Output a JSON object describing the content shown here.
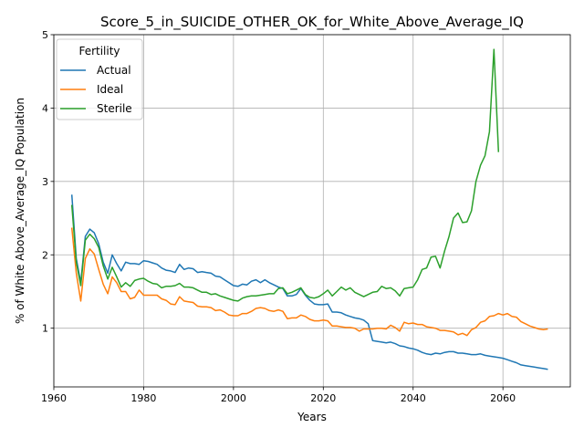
{
  "chart_data": {
    "type": "line",
    "title": "Score_5_in_SUICIDE_OTHER_OK_for_White_Above_Average_IQ",
    "xlabel": "Years",
    "ylabel": "% of White Above_Average_IQ Population",
    "xlim": [
      1960,
      2075
    ],
    "ylim": [
      0.2,
      5.0
    ],
    "xticks": [
      1960,
      1980,
      2000,
      2020,
      2040,
      2060
    ],
    "yticks": [
      1,
      2,
      3,
      4,
      5
    ],
    "grid": true,
    "legend": {
      "title": "Fertility",
      "position": "top-left"
    },
    "series": [
      {
        "name": "Actual",
        "color": "#1f77b4",
        "x": [
          1964,
          1965,
          1966,
          1967,
          1968,
          1969,
          1970,
          1971,
          1972,
          1973,
          1974,
          1975,
          1976,
          1977,
          1978,
          1979,
          1980,
          1981,
          1982,
          1983,
          1984,
          1985,
          1986,
          1987,
          1988,
          1989,
          1990,
          1991,
          1992,
          1993,
          1994,
          1995,
          1996,
          1997,
          1998,
          1999,
          2000,
          2001,
          2002,
          2003,
          2004,
          2005,
          2006,
          2007,
          2008,
          2009,
          2010,
          2011,
          2012,
          2013,
          2014,
          2015,
          2016,
          2017,
          2018,
          2019,
          2020,
          2021,
          2022,
          2023,
          2024,
          2025,
          2026,
          2027,
          2028,
          2029,
          2030,
          2031,
          2032,
          2033,
          2034,
          2035,
          2036,
          2037,
          2038,
          2039,
          2040,
          2041,
          2042,
          2043,
          2044,
          2045,
          2046,
          2047,
          2048,
          2049,
          2050,
          2051,
          2052,
          2053,
          2054,
          2055,
          2056,
          2057,
          2058,
          2059,
          2060,
          2061,
          2062,
          2063,
          2064,
          2065,
          2066,
          2067,
          2068,
          2069,
          2070
        ],
        "y": [
          2.82,
          1.95,
          1.62,
          2.25,
          2.35,
          2.3,
          2.15,
          1.9,
          1.75,
          2.0,
          1.88,
          1.78,
          1.9,
          1.88,
          1.88,
          1.87,
          1.92,
          1.91,
          1.89,
          1.87,
          1.82,
          1.79,
          1.78,
          1.76,
          1.87,
          1.8,
          1.82,
          1.81,
          1.76,
          1.77,
          1.76,
          1.75,
          1.71,
          1.7,
          1.66,
          1.62,
          1.58,
          1.57,
          1.6,
          1.59,
          1.64,
          1.66,
          1.62,
          1.66,
          1.62,
          1.59,
          1.56,
          1.54,
          1.44,
          1.44,
          1.46,
          1.54,
          1.45,
          1.38,
          1.33,
          1.32,
          1.32,
          1.33,
          1.22,
          1.22,
          1.21,
          1.18,
          1.16,
          1.14,
          1.13,
          1.11,
          1.06,
          0.83,
          0.82,
          0.81,
          0.8,
          0.81,
          0.79,
          0.76,
          0.75,
          0.73,
          0.72,
          0.7,
          0.67,
          0.65,
          0.64,
          0.66,
          0.65,
          0.67,
          0.68,
          0.68,
          0.66,
          0.66,
          0.65,
          0.64,
          0.64,
          0.65,
          0.63,
          0.62,
          0.61,
          0.6,
          0.59,
          0.57,
          0.55,
          0.53,
          0.5,
          0.49,
          0.48,
          0.47,
          0.46,
          0.45,
          0.44
        ]
      },
      {
        "name": "Ideal",
        "color": "#ff7f0e",
        "x": [
          1964,
          1965,
          1966,
          1967,
          1968,
          1969,
          1970,
          1971,
          1972,
          1973,
          1974,
          1975,
          1976,
          1977,
          1978,
          1979,
          1980,
          1981,
          1982,
          1983,
          1984,
          1985,
          1986,
          1987,
          1988,
          1989,
          1990,
          1991,
          1992,
          1993,
          1994,
          1995,
          1996,
          1997,
          1998,
          1999,
          2000,
          2001,
          2002,
          2003,
          2004,
          2005,
          2006,
          2007,
          2008,
          2009,
          2010,
          2011,
          2012,
          2013,
          2014,
          2015,
          2016,
          2017,
          2018,
          2019,
          2020,
          2021,
          2022,
          2023,
          2024,
          2025,
          2026,
          2027,
          2028,
          2029,
          2030,
          2031,
          2032,
          2033,
          2034,
          2035,
          2036,
          2037,
          2038,
          2039,
          2040,
          2041,
          2042,
          2043,
          2044,
          2045,
          2046,
          2047,
          2048,
          2049,
          2050,
          2051,
          2052,
          2053,
          2054,
          2055,
          2056,
          2057,
          2058,
          2059,
          2060,
          2061,
          2062,
          2063,
          2064,
          2065,
          2066,
          2067,
          2068,
          2069,
          2070
        ],
        "y": [
          2.37,
          1.75,
          1.37,
          1.95,
          2.08,
          2.01,
          1.8,
          1.6,
          1.47,
          1.7,
          1.62,
          1.5,
          1.5,
          1.4,
          1.42,
          1.52,
          1.45,
          1.45,
          1.45,
          1.45,
          1.4,
          1.38,
          1.33,
          1.32,
          1.43,
          1.37,
          1.36,
          1.35,
          1.3,
          1.29,
          1.29,
          1.28,
          1.24,
          1.25,
          1.22,
          1.18,
          1.17,
          1.17,
          1.2,
          1.2,
          1.23,
          1.27,
          1.28,
          1.27,
          1.24,
          1.23,
          1.25,
          1.23,
          1.13,
          1.14,
          1.14,
          1.18,
          1.16,
          1.12,
          1.1,
          1.1,
          1.11,
          1.1,
          1.03,
          1.03,
          1.02,
          1.01,
          1.01,
          1.0,
          0.96,
          0.99,
          0.99,
          0.99,
          1.0,
          1.0,
          0.99,
          1.04,
          1.01,
          0.96,
          1.08,
          1.06,
          1.07,
          1.05,
          1.05,
          1.02,
          1.01,
          1.0,
          0.97,
          0.97,
          0.96,
          0.95,
          0.91,
          0.93,
          0.9,
          0.98,
          1.01,
          1.08,
          1.1,
          1.16,
          1.17,
          1.2,
          1.18,
          1.2,
          1.16,
          1.15,
          1.09,
          1.06,
          1.03,
          1.01,
          0.99,
          0.98,
          0.99
        ]
      },
      {
        "name": "Sterile",
        "color": "#2ca02c",
        "x": [
          1964,
          1965,
          1966,
          1967,
          1968,
          1969,
          1970,
          1971,
          1972,
          1973,
          1974,
          1975,
          1976,
          1977,
          1978,
          1979,
          1980,
          1981,
          1982,
          1983,
          1984,
          1985,
          1986,
          1987,
          1988,
          1989,
          1990,
          1991,
          1992,
          1993,
          1994,
          1995,
          1996,
          1997,
          1998,
          1999,
          2000,
          2001,
          2002,
          2003,
          2004,
          2005,
          2006,
          2007,
          2008,
          2009,
          2010,
          2011,
          2012,
          2013,
          2014,
          2015,
          2016,
          2017,
          2018,
          2019,
          2020,
          2021,
          2022,
          2023,
          2024,
          2025,
          2026,
          2027,
          2028,
          2029,
          2030,
          2031,
          2032,
          2033,
          2034,
          2035,
          2036,
          2037,
          2038,
          2039,
          2040,
          2041,
          2042,
          2043,
          2044,
          2045,
          2046,
          2047,
          2048,
          2049,
          2050,
          2051,
          2052,
          2053,
          2054,
          2055,
          2056,
          2057,
          2058,
          2059
        ],
        "y": [
          2.68,
          1.9,
          1.58,
          2.2,
          2.28,
          2.22,
          2.1,
          1.85,
          1.67,
          1.83,
          1.7,
          1.56,
          1.62,
          1.57,
          1.65,
          1.67,
          1.68,
          1.64,
          1.61,
          1.6,
          1.55,
          1.57,
          1.57,
          1.58,
          1.61,
          1.56,
          1.56,
          1.55,
          1.52,
          1.49,
          1.49,
          1.46,
          1.47,
          1.44,
          1.42,
          1.4,
          1.38,
          1.37,
          1.41,
          1.43,
          1.44,
          1.44,
          1.45,
          1.46,
          1.47,
          1.47,
          1.54,
          1.55,
          1.47,
          1.49,
          1.52,
          1.55,
          1.46,
          1.42,
          1.41,
          1.43,
          1.47,
          1.52,
          1.44,
          1.5,
          1.56,
          1.52,
          1.55,
          1.49,
          1.46,
          1.43,
          1.46,
          1.49,
          1.5,
          1.57,
          1.54,
          1.55,
          1.51,
          1.44,
          1.54,
          1.55,
          1.56,
          1.66,
          1.8,
          1.82,
          1.97,
          1.98,
          1.82,
          2.05,
          2.25,
          2.5,
          2.57,
          2.44,
          2.45,
          2.6,
          3.0,
          3.22,
          3.35,
          3.68,
          4.8,
          3.4
        ]
      }
    ]
  }
}
